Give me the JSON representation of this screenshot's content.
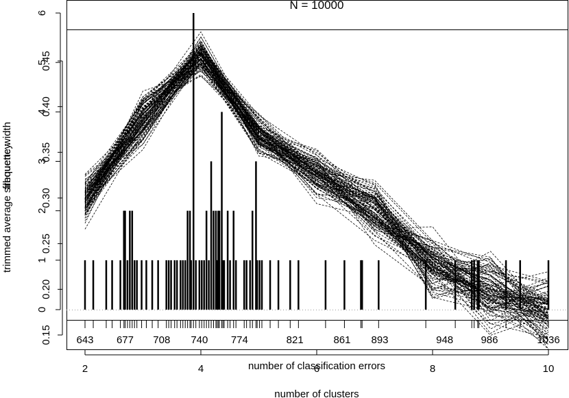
{
  "chart_data": [
    {
      "type": "line",
      "title": "",
      "xlabel": "number of clusters",
      "ylabel": "trimmed average silhouette width",
      "x": [
        2,
        3,
        4,
        5,
        6,
        7,
        8,
        9,
        10
      ],
      "x_ticks": [
        "2",
        "4",
        "6",
        "8",
        "10"
      ],
      "y_ticks": [
        "0.15",
        "0.20",
        "0.25",
        "0.30",
        "0.35",
        "0.40",
        "0.45"
      ],
      "ylim": [
        0.15,
        0.45
      ],
      "xlim": [
        2,
        10
      ],
      "grid": false,
      "line_style": "dashed",
      "series_count": 100,
      "mean_profile": [
        0.3,
        0.385,
        0.455,
        0.37,
        0.325,
        0.285,
        0.23,
        0.195,
        0.175
      ],
      "spread": [
        0.012,
        0.014,
        0.01,
        0.01,
        0.012,
        0.014,
        0.016,
        0.018,
        0.02
      ]
    },
    {
      "type": "bar",
      "title": "N = 10000",
      "xlabel": "number of classification errors",
      "ylabel": "frequency",
      "x_ticks": [
        "643",
        "677",
        "708",
        "740",
        "774",
        "821",
        "861",
        "893",
        "948",
        "986",
        "1036"
      ],
      "y_ticks": [
        "0",
        "1",
        "2",
        "3",
        "4",
        "5",
        "6"
      ],
      "xlim": [
        643,
        1036
      ],
      "ylim": [
        0,
        6
      ],
      "values": [
        [
          643,
          1
        ],
        [
          650,
          1
        ],
        [
          661,
          1
        ],
        [
          666,
          1
        ],
        [
          673,
          1
        ],
        [
          676,
          2
        ],
        [
          677,
          2
        ],
        [
          679,
          1
        ],
        [
          681,
          2
        ],
        [
          683,
          2
        ],
        [
          685,
          1
        ],
        [
          687,
          1
        ],
        [
          691,
          1
        ],
        [
          695,
          1
        ],
        [
          700,
          1
        ],
        [
          705,
          1
        ],
        [
          712,
          1
        ],
        [
          714,
          1
        ],
        [
          716,
          1
        ],
        [
          719,
          1
        ],
        [
          721,
          1
        ],
        [
          724,
          1
        ],
        [
          726,
          1
        ],
        [
          728,
          1
        ],
        [
          730,
          2
        ],
        [
          732,
          2
        ],
        [
          733,
          1
        ],
        [
          735,
          6
        ],
        [
          737,
          1
        ],
        [
          740,
          1
        ],
        [
          742,
          1
        ],
        [
          744,
          1
        ],
        [
          746,
          2
        ],
        [
          748,
          1
        ],
        [
          750,
          3
        ],
        [
          752,
          2
        ],
        [
          754,
          2
        ],
        [
          755,
          1
        ],
        [
          756,
          2
        ],
        [
          757,
          2
        ],
        [
          759,
          4
        ],
        [
          760,
          1
        ],
        [
          761,
          1
        ],
        [
          764,
          2
        ],
        [
          766,
          1
        ],
        [
          769,
          2
        ],
        [
          771,
          1
        ],
        [
          778,
          1
        ],
        [
          780,
          1
        ],
        [
          783,
          1
        ],
        [
          785,
          2
        ],
        [
          788,
          3
        ],
        [
          789,
          1
        ],
        [
          791,
          1
        ],
        [
          793,
          1
        ],
        [
          800,
          1
        ],
        [
          807,
          1
        ],
        [
          817,
          1
        ],
        [
          824,
          1
        ],
        [
          847,
          1
        ],
        [
          863,
          1
        ],
        [
          877,
          1
        ],
        [
          878,
          1
        ],
        [
          892,
          1
        ],
        [
          932,
          1
        ],
        [
          957,
          1
        ],
        [
          971,
          1
        ],
        [
          973,
          1
        ],
        [
          976,
          1
        ],
        [
          977,
          1
        ],
        [
          1000,
          1
        ],
        [
          1012,
          1
        ],
        [
          1036,
          1
        ]
      ]
    }
  ]
}
